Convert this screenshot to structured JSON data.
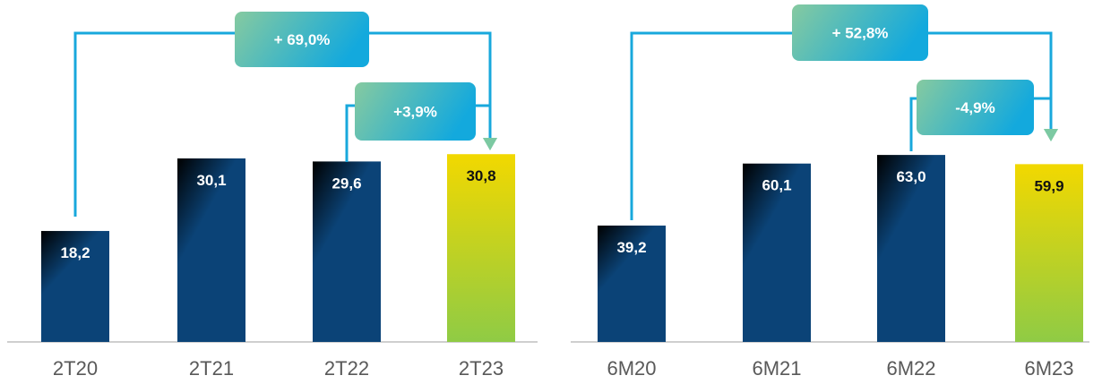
{
  "colors": {
    "bar_dark_top": "#000000",
    "bar_dark_bottom": "#0b4377",
    "bar_highlight_top": "#f2d800",
    "bar_highlight_bottom": "#8fcb45",
    "connector": "#18a8dc",
    "arrow_head": "#7cc9a2",
    "badge_left": "#86caa0",
    "badge_right": "#13a9dd",
    "axis": "#bfbfbf",
    "category_text": "#595959"
  },
  "chart_data": [
    {
      "type": "bar",
      "categories": [
        "2T20",
        "2T21",
        "2T22",
        "2T23"
      ],
      "values": [
        18.2,
        30.1,
        29.6,
        30.8
      ],
      "value_labels": [
        "18,2",
        "30,1",
        "29,6",
        "30,8"
      ],
      "highlight_index": 3,
      "ylim": [
        0,
        37
      ],
      "annotations": [
        {
          "label": "+ 69,0%",
          "from": "2T20",
          "to": "2T23"
        },
        {
          "label": "+3,9%",
          "from": "2T22",
          "to": "2T23"
        }
      ]
    },
    {
      "type": "bar",
      "categories": [
        "6M20",
        "6M21",
        "6M22",
        "6M23"
      ],
      "values": [
        39.2,
        60.1,
        63.0,
        59.9
      ],
      "value_labels": [
        "39,2",
        "60,1",
        "63,0",
        "59,9"
      ],
      "highlight_index": 3,
      "ylim": [
        0,
        76
      ],
      "annotations": [
        {
          "label": "+ 52,8%",
          "from": "6M20",
          "to": "6M23"
        },
        {
          "label": "-4,9%",
          "from": "6M22",
          "to": "6M23"
        }
      ]
    }
  ]
}
